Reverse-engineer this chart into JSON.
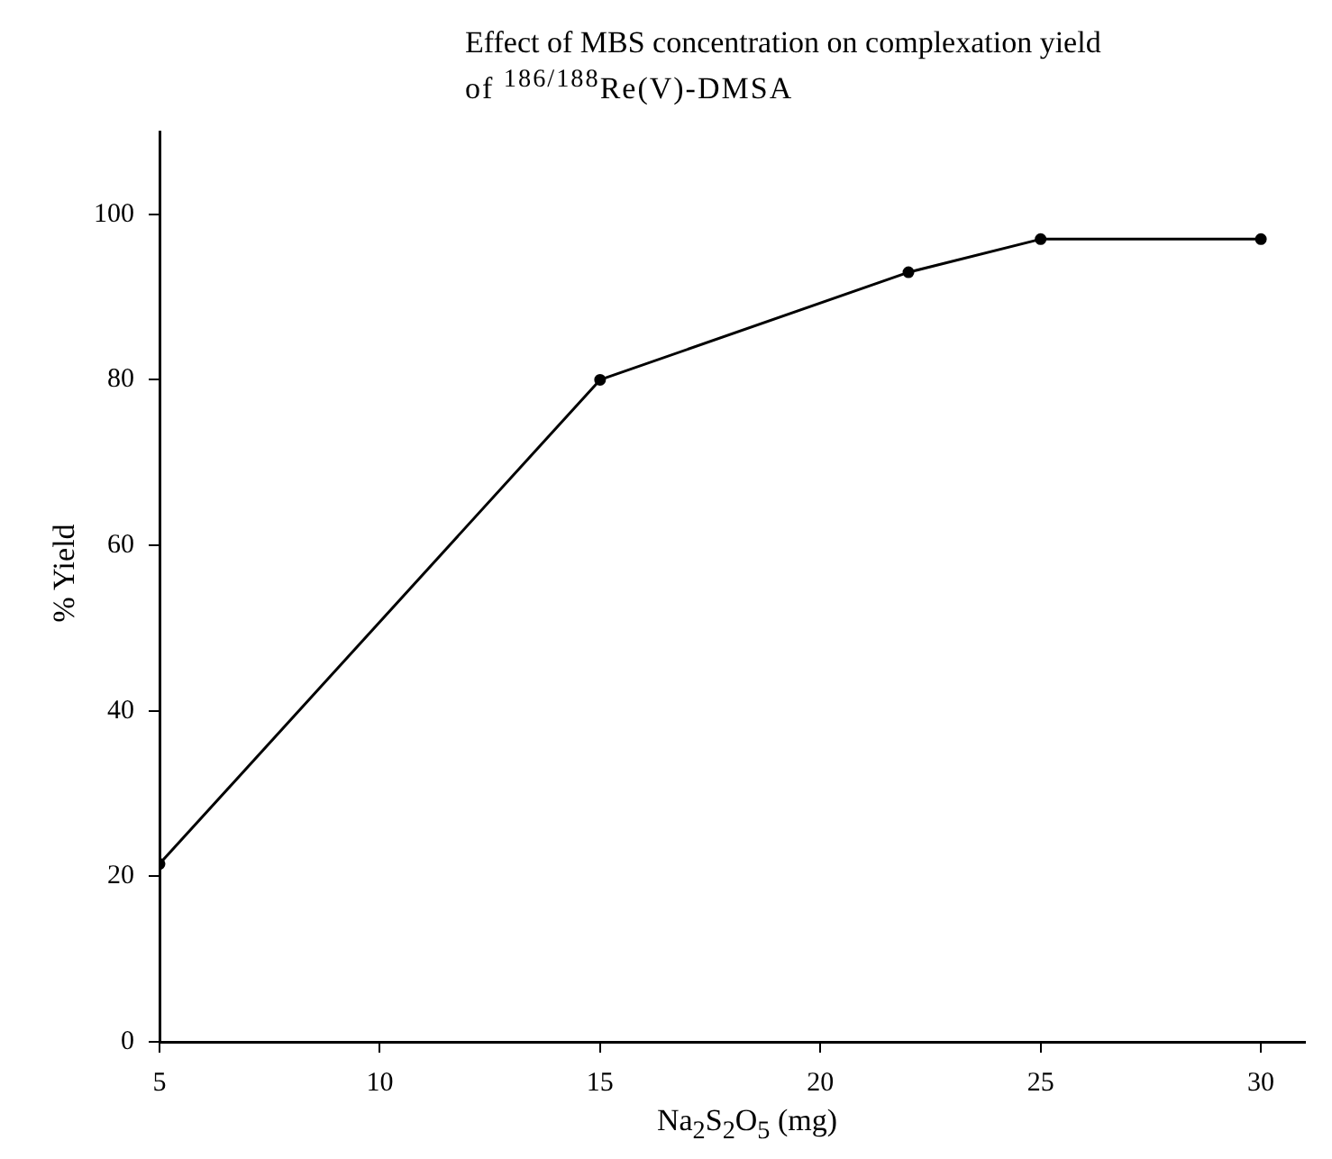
{
  "chart_data": {
    "type": "line",
    "title": "Effect of MBS concentration on complexation yield",
    "subtitle": "of $^{186/188}$Re(V)-DMSA",
    "xlabel": "Na$_{2}$S$_{2}$O$_{5}$ (mg)",
    "ylabel": "% Yield",
    "x": [
      5,
      15,
      22,
      25,
      30
    ],
    "series": [
      {
        "color": "#000000",
        "values": [
          21.5,
          80,
          93,
          97,
          97
        ]
      }
    ],
    "xlim": [
      5,
      31
    ],
    "xticks": [
      5,
      10,
      15,
      20,
      25,
      30
    ],
    "ylim": [
      0,
      110
    ],
    "yticks": [
      0,
      20,
      40,
      60,
      80,
      100
    ],
    "grid": false,
    "legend": false,
    "marker": "circle",
    "line_style": "solid"
  }
}
